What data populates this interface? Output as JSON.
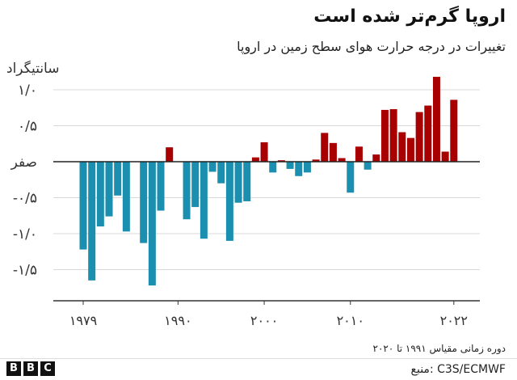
{
  "header": {
    "title": "اروپا گرم‌تر شده است",
    "subtitle": "تغییرات در درجه حرارت هوای سطح زمین در اروپا"
  },
  "footer": {
    "note": "دوره زمانی مقیاس ۱۹۹۱ تا ۲۰۲۰",
    "source": "منبع: C3S/ECMWF",
    "logo_letters": [
      "B",
      "B",
      "C"
    ]
  },
  "colors": {
    "negative": "#1b8fb0",
    "positive": "#a80000",
    "axis": "#333333",
    "grid": "#d9d9d9"
  },
  "chart_data": {
    "type": "bar",
    "title": "اروپا گرم‌تر شده است",
    "subtitle": "تغییرات در درجه حرارت هوای سطح زمین در اروپا",
    "ylabel": "سانتیگراد",
    "ylim": [
      -1.9,
      1.1
    ],
    "yticks": [
      {
        "value": 1.0,
        "label": "۱/۰"
      },
      {
        "value": 0.5,
        "label": "۰/۵"
      },
      {
        "value": 0.0,
        "label": "صفر"
      },
      {
        "value": -0.5,
        "label": "-۰/۵"
      },
      {
        "value": -1.0,
        "label": "-۱/۰"
      },
      {
        "value": -1.5,
        "label": "-۱/۵"
      }
    ],
    "xticks": [
      {
        "value": 1979,
        "label": "۱۹۷۹"
      },
      {
        "value": 1990,
        "label": "۱۹۹۰"
      },
      {
        "value": 2000,
        "label": "۲۰۰۰"
      },
      {
        "value": 2010,
        "label": "۲۰۱۰"
      },
      {
        "value": 2022,
        "label": "۲۰۲۲"
      }
    ],
    "grid": "horizontal",
    "x": [
      1979,
      1980,
      1981,
      1982,
      1983,
      1984,
      1985,
      1986,
      1987,
      1988,
      1989,
      1990,
      1991,
      1992,
      1993,
      1994,
      1995,
      1996,
      1997,
      1998,
      1999,
      2000,
      2001,
      2002,
      2003,
      2004,
      2005,
      2006,
      2007,
      2008,
      2009,
      2010,
      2011,
      2012,
      2013,
      2014,
      2015,
      2016,
      2017,
      2018,
      2019,
      2020,
      2021,
      2022
    ],
    "values": [
      -1.22,
      -1.65,
      -0.9,
      -0.76,
      -0.47,
      -0.97,
      0,
      -1.13,
      -1.72,
      -0.68,
      0.2,
      0,
      -0.8,
      -0.63,
      -1.07,
      -0.14,
      -0.3,
      -1.1,
      -0.57,
      -0.55,
      0.06,
      0.27,
      -0.15,
      0.02,
      -0.1,
      -0.2,
      -0.15,
      0.03,
      0.4,
      0.26,
      0.05,
      -0.43,
      0.21,
      -0.11,
      0.1,
      0.72,
      0.73,
      0.41,
      0.33,
      0.69,
      0.78,
      1.18,
      0.14,
      0.86
    ]
  }
}
